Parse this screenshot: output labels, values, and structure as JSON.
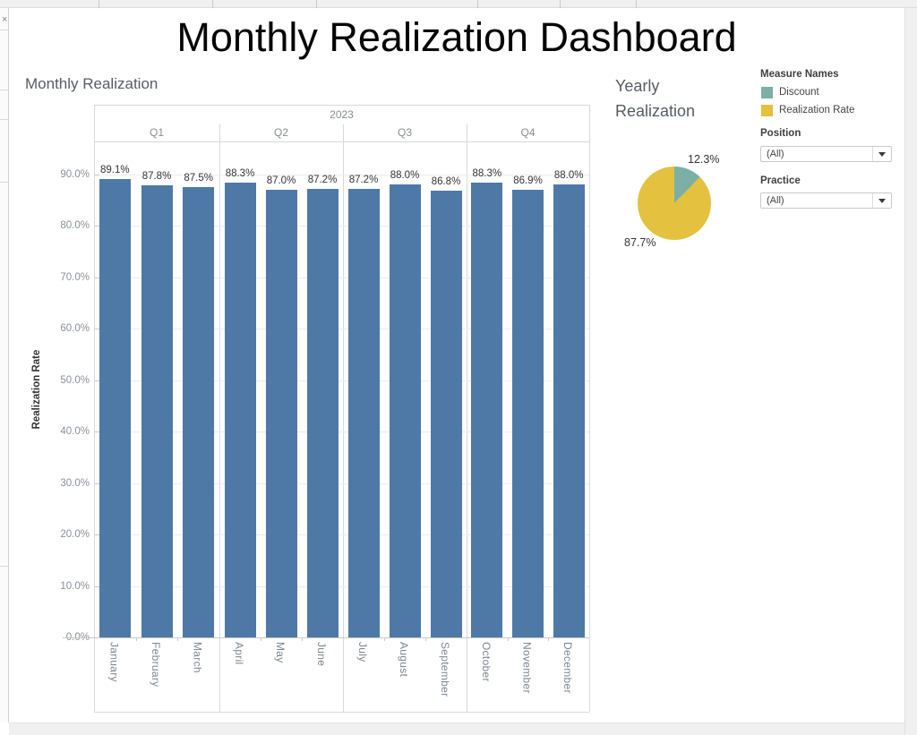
{
  "window": {
    "close_glyph": "×"
  },
  "dashboard": {
    "title": "Monthly Realization Dashboard"
  },
  "bar_section": {
    "title": "Monthly Realization"
  },
  "pie_section": {
    "title_line1": "Yearly",
    "title_line2": "Realization"
  },
  "legend": {
    "title": "Measure Names",
    "items": [
      {
        "label": "Discount",
        "color": "#7cafa6"
      },
      {
        "label": "Realization Rate",
        "color": "#e4c23f"
      }
    ]
  },
  "filters": [
    {
      "label": "Position",
      "value": "(All)"
    },
    {
      "label": "Practice",
      "value": "(All)"
    }
  ],
  "chart_data": [
    {
      "type": "bar",
      "title": "Monthly Realization",
      "year_header": "2023",
      "quarters": [
        "Q1",
        "Q2",
        "Q3",
        "Q4"
      ],
      "categories": [
        "January",
        "February",
        "March",
        "April",
        "May",
        "June",
        "July",
        "August",
        "September",
        "October",
        "November",
        "December"
      ],
      "values": [
        89.1,
        87.8,
        87.5,
        88.3,
        87.0,
        87.2,
        87.2,
        88.0,
        86.8,
        88.3,
        86.9,
        88.0
      ],
      "value_labels": [
        "89.1%",
        "87.8%",
        "87.5%",
        "88.3%",
        "87.0%",
        "87.2%",
        "87.2%",
        "88.0%",
        "86.8%",
        "88.3%",
        "86.9%",
        "88.0%"
      ],
      "xlabel": "",
      "ylabel": "Realization Rate",
      "ylim": [
        0,
        96
      ],
      "yticks": [
        "0.0%",
        "10.0%",
        "20.0%",
        "30.0%",
        "40.0%",
        "50.0%",
        "60.0%",
        "70.0%",
        "80.0%",
        "90.0%"
      ],
      "grid": true,
      "bar_color": "#4e79a7",
      "legend_position": "none"
    },
    {
      "type": "pie",
      "title": "Yearly Realization",
      "slices": [
        {
          "label": "Discount",
          "value": 12.3,
          "display": "12.3%",
          "color": "#7cafa6"
        },
        {
          "label": "Realization Rate",
          "value": 87.7,
          "display": "87.7%",
          "color": "#e4c23f"
        }
      ]
    }
  ]
}
